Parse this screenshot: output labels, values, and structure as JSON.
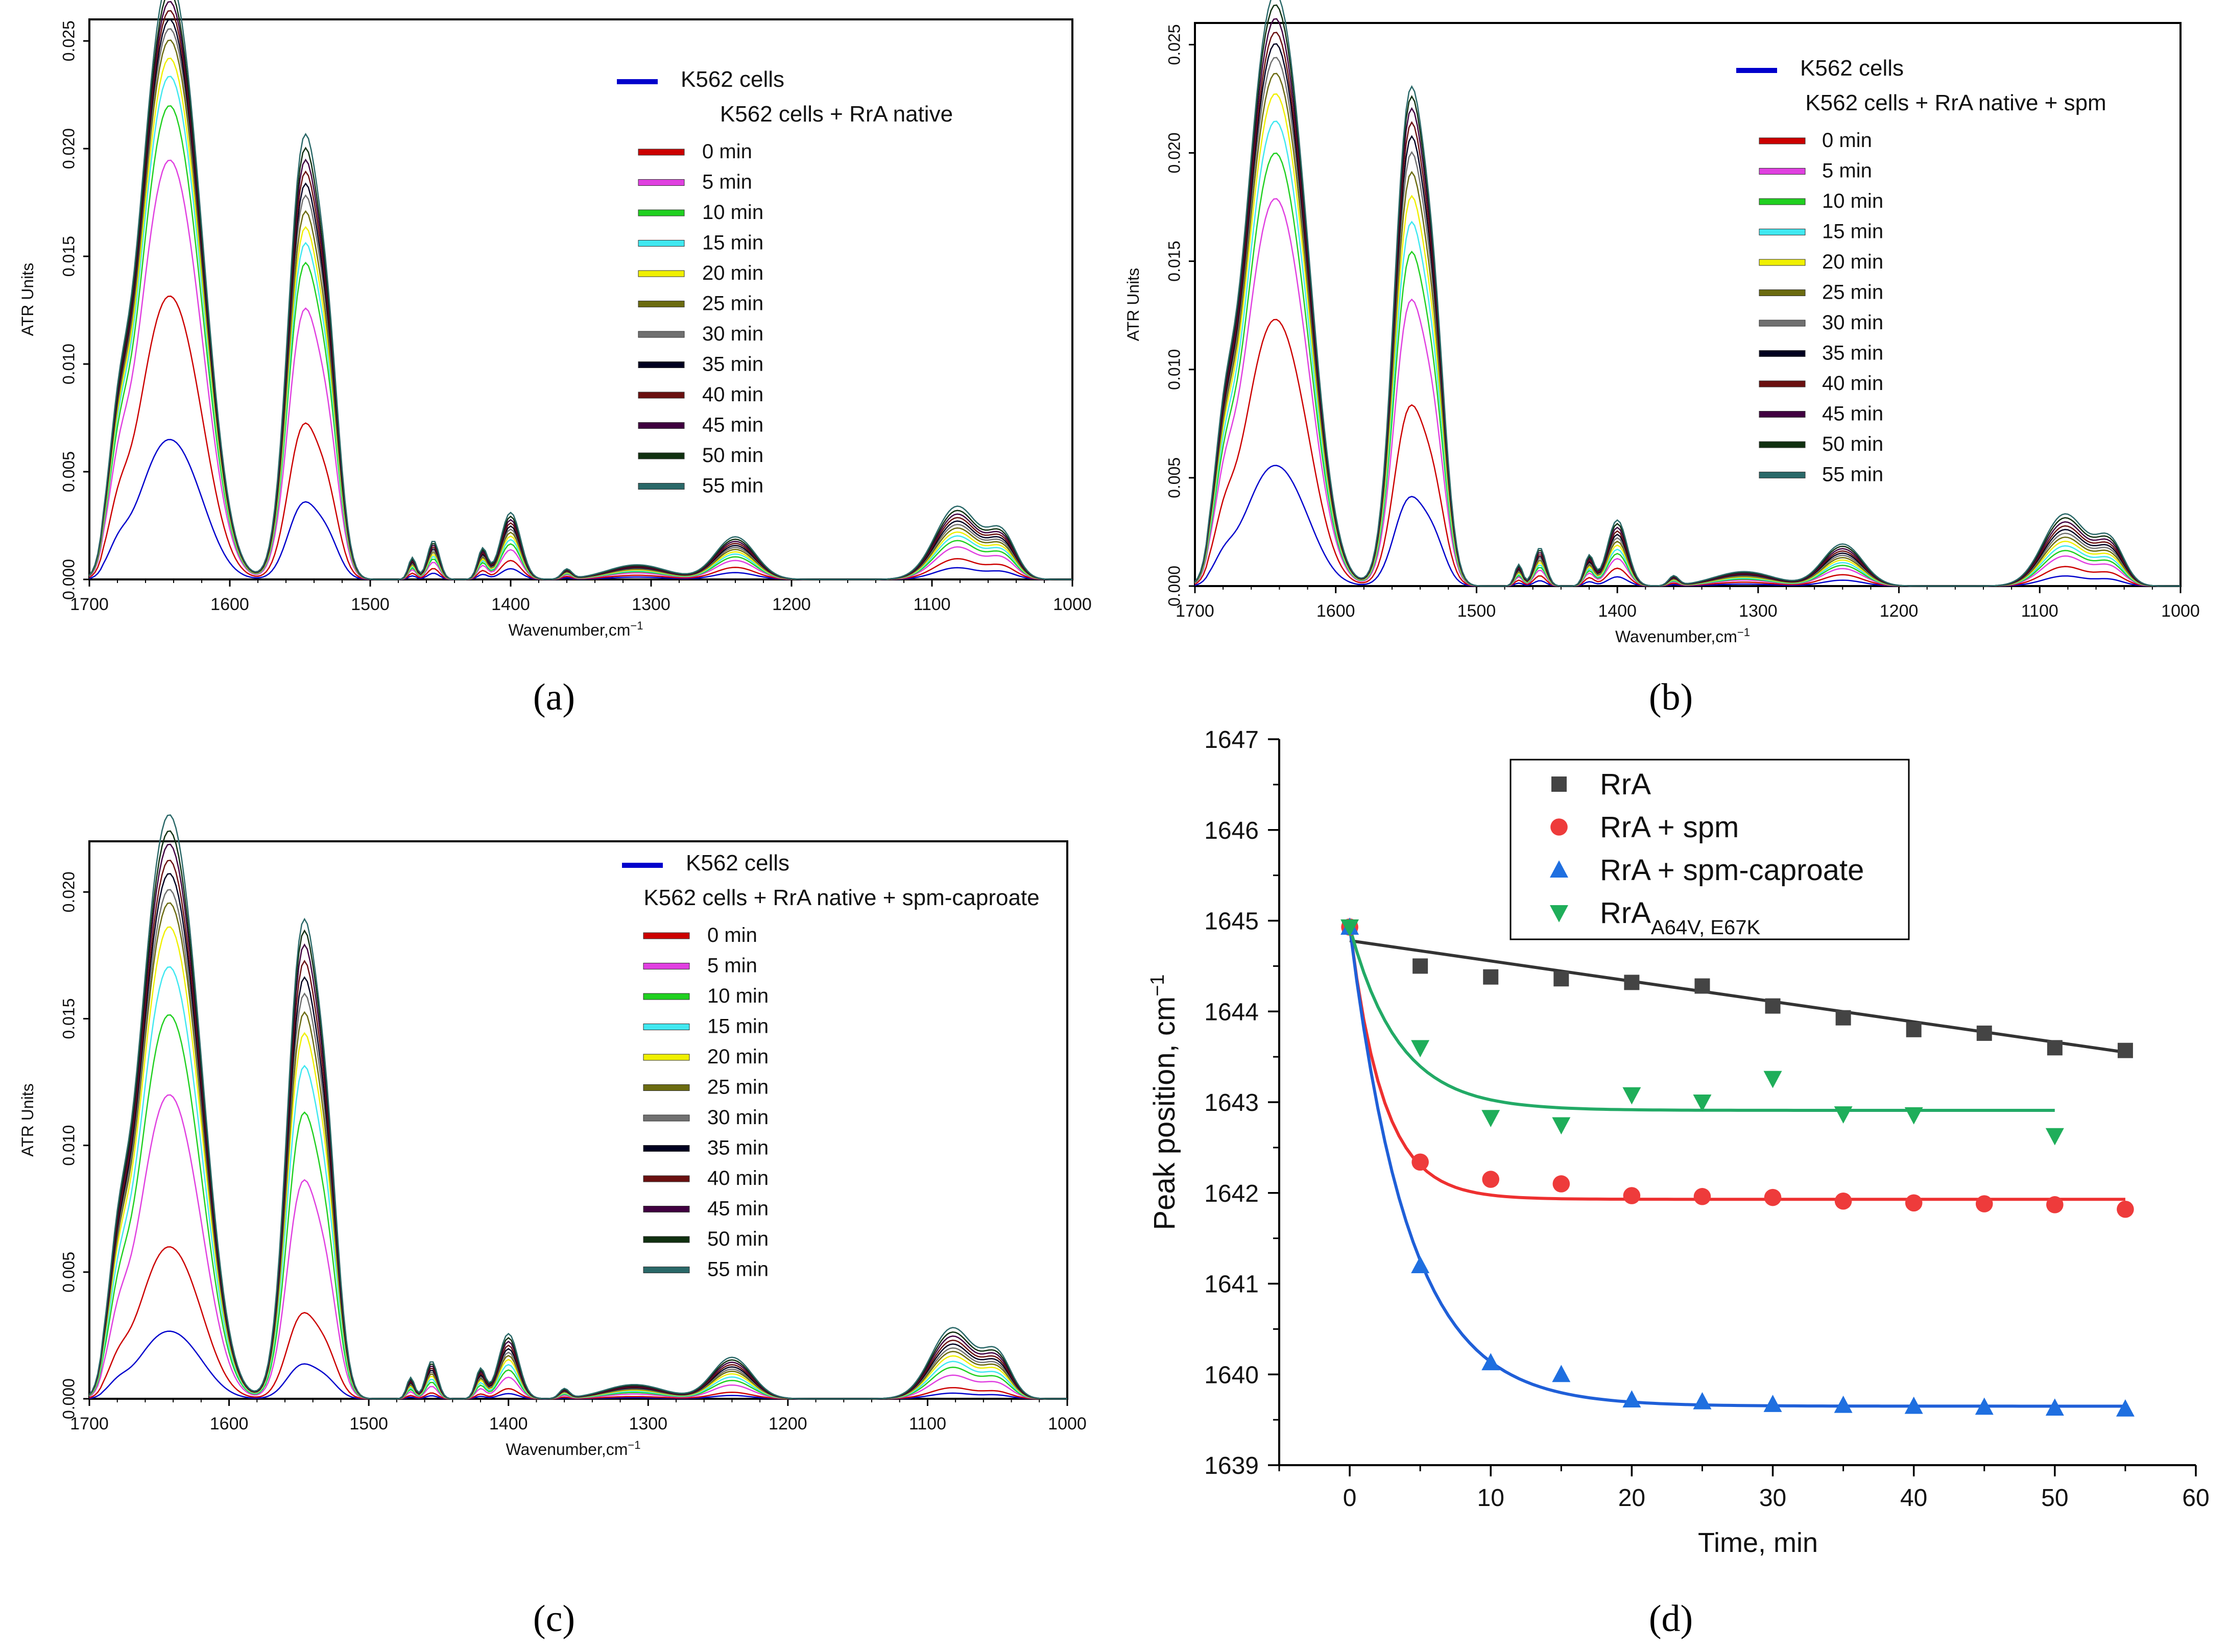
{
  "spectrum_legend": {
    "baseline_color": "#0000cc",
    "time_colors": [
      "#cc0000",
      "#e040e0",
      "#20d020",
      "#40e8f0",
      "#f0f000",
      "#6b6b10",
      "#707070",
      "#000020",
      "#6a1010",
      "#400040",
      "#103010",
      "#2a6868"
    ]
  },
  "chart_data": [
    {
      "type": "line",
      "panel_label": "(a)",
      "xlabel": "Wavenumber,cm",
      "xlabel_sup": "−1",
      "ylabel": "ATR Units",
      "xlim": [
        1700,
        1000
      ],
      "ylim": [
        0,
        0.026
      ],
      "x_ticks": [
        "1700",
        "1600",
        "1500",
        "1400",
        "1300",
        "1200",
        "1100",
        "1000"
      ],
      "y_ticks": [
        "0.000",
        "0.005",
        "0.010",
        "0.015",
        "0.020",
        "0.025"
      ],
      "legend_header": [
        "K562 cells",
        "K562 cells + RrA native"
      ],
      "series_names": [
        "0 min",
        "5 min",
        "10 min",
        "15 min",
        "20 min",
        "25 min",
        "30 min",
        "35 min",
        "40 min",
        "45 min",
        "50 min",
        "55 min"
      ],
      "amide_I_peak": [
        0.0125,
        0.0185,
        0.0209,
        0.0222,
        0.023,
        0.0238,
        0.0243,
        0.0247,
        0.0251,
        0.0255,
        0.0259,
        0.0265
      ],
      "amide_II_peak": [
        0.0079,
        0.0137,
        0.016,
        0.017,
        0.0178,
        0.0186,
        0.0194,
        0.02,
        0.0206,
        0.0212,
        0.0218,
        0.0225
      ],
      "baseline_peaks": [
        0.0056,
        0.0034
      ]
    },
    {
      "type": "line",
      "panel_label": "(b)",
      "xlabel": "Wavenumber,cm",
      "xlabel_sup": "−1",
      "ylabel": "ATR Units",
      "xlim": [
        1700,
        1000
      ],
      "ylim": [
        0,
        0.026
      ],
      "x_ticks": [
        "1700",
        "1600",
        "1500",
        "1400",
        "1300",
        "1200",
        "1100",
        "1000"
      ],
      "y_ticks": [
        "0.000",
        "0.005",
        "0.010",
        "0.015",
        "0.020",
        "0.025"
      ],
      "legend_header": [
        "K562 cells",
        "K562 cells + RrA native  + spm"
      ],
      "series_names": [
        "0 min",
        "5 min",
        "10 min",
        "15 min",
        "20 min",
        "25 min",
        "30 min",
        "35 min",
        "40 min",
        "45 min",
        "50 min",
        "55 min"
      ],
      "amide_I_peak": [
        0.0117,
        0.017,
        0.019,
        0.0204,
        0.0216,
        0.0225,
        0.0232,
        0.0238,
        0.0243,
        0.0249,
        0.0255,
        0.026
      ],
      "amide_II_peak": [
        0.0091,
        0.0144,
        0.0168,
        0.0183,
        0.0196,
        0.0208,
        0.0218,
        0.0226,
        0.0233,
        0.024,
        0.0246,
        0.0251
      ],
      "baseline_peaks": [
        0.0048,
        0.0039
      ]
    },
    {
      "type": "line",
      "panel_label": "(c)",
      "xlabel": "Wavenumber,cm",
      "xlabel_sup": "−1",
      "ylabel": "ATR Units",
      "xlim": [
        1700,
        1000
      ],
      "ylim": [
        0,
        0.022
      ],
      "x_ticks": [
        "1700",
        "1600",
        "1500",
        "1400",
        "1300",
        "1200",
        "1100",
        "1000"
      ],
      "y_ticks": [
        "0.000",
        "0.005",
        "0.010",
        "0.015",
        "0.020"
      ],
      "legend_header": [
        "K562 cells",
        "K562 cells + RrA native + spm-caproate"
      ],
      "series_names": [
        "0 min",
        "5 min",
        "10 min",
        "15 min",
        "20 min",
        "25 min",
        "30 min",
        "35 min",
        "40 min",
        "45 min",
        "50 min",
        "55 min"
      ],
      "amide_I_peak": [
        0.0057,
        0.0114,
        0.0144,
        0.0162,
        0.0177,
        0.0186,
        0.0191,
        0.0197,
        0.0202,
        0.0208,
        0.0213,
        0.0219
      ],
      "amide_II_peak": [
        0.0037,
        0.0094,
        0.0123,
        0.0143,
        0.0157,
        0.0166,
        0.0174,
        0.0181,
        0.0188,
        0.0195,
        0.0201,
        0.0206
      ],
      "baseline_peaks": [
        0.0023,
        0.0013
      ]
    },
    {
      "type": "scatter",
      "panel_label": "(d)",
      "xlabel": "Time, min",
      "ylabel": "Peak position, cm",
      "ylabel_sup": "−1",
      "xlim": [
        -5,
        60
      ],
      "ylim": [
        1639,
        1647
      ],
      "x_ticks": [
        0,
        10,
        20,
        30,
        40,
        50,
        60
      ],
      "y_ticks": [
        1639,
        1640,
        1641,
        1642,
        1643,
        1644,
        1645,
        1646,
        1647
      ],
      "legend_position": "top-left",
      "series": [
        {
          "name": "RrA",
          "marker": "square",
          "color": "#444444",
          "fit_color": "#333333",
          "x": [
            0,
            5,
            10,
            15,
            20,
            25,
            30,
            35,
            40,
            45,
            50,
            55
          ],
          "y": [
            1644.93,
            1644.5,
            1644.38,
            1644.36,
            1644.32,
            1644.28,
            1644.06,
            1643.93,
            1643.8,
            1643.76,
            1643.6,
            1643.57
          ],
          "fit": {
            "kind": "linear",
            "y0": 1644.78,
            "y55": 1643.55
          }
        },
        {
          "name": "RrA + spm",
          "marker": "circle",
          "color": "#ee3b3b",
          "fit_color": "#ee3030",
          "x": [
            0,
            5,
            10,
            15,
            20,
            25,
            30,
            35,
            40,
            45,
            50,
            55
          ],
          "y": [
            1644.93,
            1642.34,
            1642.15,
            1642.1,
            1641.97,
            1641.96,
            1641.95,
            1641.91,
            1641.89,
            1641.88,
            1641.87,
            1641.82
          ],
          "fit": {
            "kind": "exp",
            "plateau": 1641.93,
            "start": 1644.93,
            "tau": 2.4,
            "x_end": 55
          }
        },
        {
          "name": "RrA + spm-caproate",
          "marker": "triangle-up",
          "color": "#1f6fe0",
          "fit_color": "#1f5fd8",
          "x": [
            0,
            5,
            10,
            15,
            20,
            25,
            30,
            35,
            40,
            45,
            50,
            55
          ],
          "y": [
            1644.93,
            1641.2,
            1640.13,
            1640.0,
            1639.72,
            1639.7,
            1639.67,
            1639.66,
            1639.65,
            1639.64,
            1639.63,
            1639.62
          ],
          "fit": {
            "kind": "exp",
            "plateau": 1639.65,
            "start": 1644.93,
            "tau": 4.2,
            "x_end": 55
          }
        },
        {
          "name": "RrA",
          "name_sub": "A64V, E67K",
          "marker": "triangle-down",
          "color": "#1fae5a",
          "fit_color": "#22aa66",
          "x": [
            0,
            5,
            10,
            15,
            20,
            25,
            30,
            35,
            40,
            50
          ],
          "y": [
            1644.93,
            1643.6,
            1642.83,
            1642.75,
            1643.08,
            1643.0,
            1643.26,
            1642.87,
            1642.86,
            1642.63
          ],
          "fit": {
            "kind": "exp",
            "plateau": 1642.91,
            "start": 1644.93,
            "tau": 3.5,
            "x_end": 50
          }
        }
      ]
    }
  ]
}
